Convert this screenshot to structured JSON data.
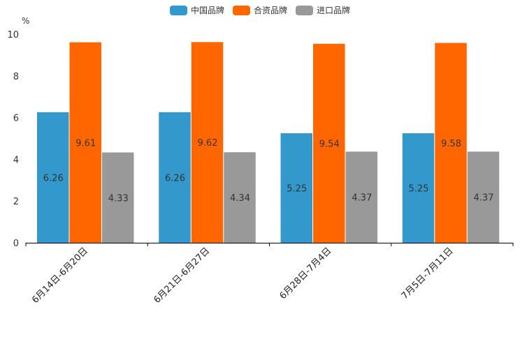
{
  "chart_data": {
    "type": "bar",
    "ylabel": "%",
    "ylim": [
      0,
      10
    ],
    "yticks": [
      0,
      2,
      4,
      6,
      8,
      10
    ],
    "categories": [
      "6月14日-6月20日",
      "6月21日-6月27日",
      "6月28日-7月4日",
      "7月5日-7月11日"
    ],
    "series": [
      {
        "name": "中国品牌",
        "color": "#3398cc",
        "values": [
          6.26,
          6.26,
          5.25,
          5.25
        ]
      },
      {
        "name": "合资品牌",
        "color": "#ff6600",
        "values": [
          9.61,
          9.62,
          9.54,
          9.58
        ]
      },
      {
        "name": "进口品牌",
        "color": "#999999",
        "values": [
          4.33,
          4.34,
          4.37,
          4.37
        ]
      }
    ],
    "legend_position": "top-center",
    "grid": false
  }
}
